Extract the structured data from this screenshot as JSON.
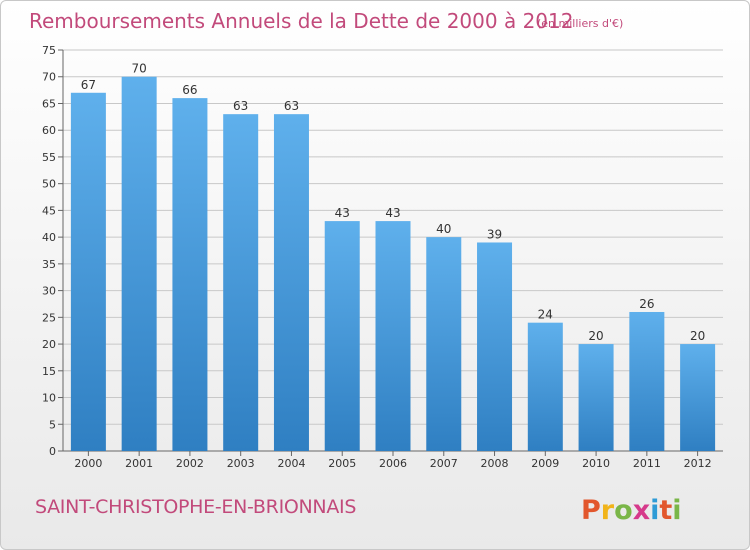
{
  "header": {
    "title": "Remboursements Annuels de la Dette de 2000 à 2012",
    "unit": "(en milliers d'€)"
  },
  "footer": {
    "commune": "SAINT-CHRISTOPHE-EN-BRIONNAIS",
    "logo_text": "Proxiti",
    "logo_colors": [
      "#e2572d",
      "#f1b41a",
      "#7ab648",
      "#d63a8b",
      "#2e9bd6",
      "#e2572d",
      "#7ab648"
    ]
  },
  "colors": {
    "bar_top": "#5fb0ec",
    "bar_bottom": "#2f7fc2",
    "title": "#c24a7b",
    "grid": "#c8c8c8"
  },
  "chart_data": {
    "type": "bar",
    "title": "Remboursements Annuels de la Dette de 2000 à 2012",
    "subtitle": "(en milliers d'€)",
    "xlabel": "",
    "ylabel": "",
    "categories": [
      "2000",
      "2001",
      "2002",
      "2003",
      "2004",
      "2005",
      "2006",
      "2007",
      "2008",
      "2009",
      "2010",
      "2011",
      "2012"
    ],
    "values": [
      67,
      70,
      66,
      63,
      63,
      43,
      43,
      40,
      39,
      24,
      20,
      26,
      20
    ],
    "ylim": [
      0,
      75
    ],
    "yticks": [
      0,
      5,
      10,
      15,
      20,
      25,
      30,
      35,
      40,
      45,
      50,
      55,
      60,
      65,
      70,
      75
    ],
    "grid": true,
    "legend": "none"
  }
}
